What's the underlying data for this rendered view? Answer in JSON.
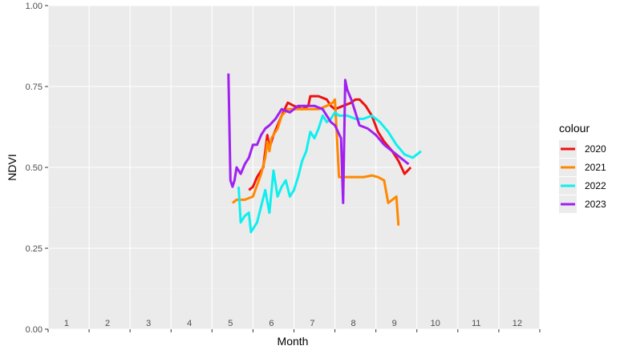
{
  "chart_data": {
    "type": "line",
    "xlabel": "Month",
    "ylabel": "NDVI",
    "ylim": [
      0,
      1
    ],
    "y_ticks": [
      "0.00",
      "0.25",
      "0.50",
      "0.75",
      "1.00"
    ],
    "x_month_labels": [
      "1",
      "2",
      "3",
      "4",
      "5",
      "6",
      "7",
      "8",
      "9",
      "10",
      "11",
      "12"
    ],
    "grid": true,
    "legend": {
      "title": "colour",
      "placement": "right"
    },
    "series": [
      {
        "name": "2020",
        "color": "#ee1111",
        "points": [
          [
            5.5,
            0.43
          ],
          [
            5.6,
            0.44
          ],
          [
            5.7,
            0.47
          ],
          [
            5.85,
            0.5
          ],
          [
            5.95,
            0.6
          ],
          [
            6.0,
            0.56
          ],
          [
            6.1,
            0.6
          ],
          [
            6.2,
            0.63
          ],
          [
            6.3,
            0.66
          ],
          [
            6.45,
            0.7
          ],
          [
            6.6,
            0.69
          ],
          [
            6.8,
            0.68
          ],
          [
            6.95,
            0.69
          ],
          [
            7.0,
            0.72
          ],
          [
            7.2,
            0.72
          ],
          [
            7.4,
            0.71
          ],
          [
            7.5,
            0.69
          ],
          [
            7.6,
            0.68
          ],
          [
            7.8,
            0.69
          ],
          [
            8.0,
            0.7
          ],
          [
            8.1,
            0.71
          ],
          [
            8.2,
            0.71
          ],
          [
            8.35,
            0.69
          ],
          [
            8.5,
            0.66
          ],
          [
            8.65,
            0.61
          ],
          [
            8.8,
            0.58
          ],
          [
            9.0,
            0.55
          ],
          [
            9.15,
            0.52
          ],
          [
            9.3,
            0.48
          ],
          [
            9.45,
            0.5
          ]
        ]
      },
      {
        "name": "2021",
        "color": "#ff8800",
        "points": [
          [
            5.1,
            0.39
          ],
          [
            5.2,
            0.4
          ],
          [
            5.4,
            0.4
          ],
          [
            5.6,
            0.41
          ],
          [
            5.8,
            0.48
          ],
          [
            5.9,
            0.53
          ],
          [
            5.95,
            0.58
          ],
          [
            6.0,
            0.55
          ],
          [
            6.05,
            0.59
          ],
          [
            6.1,
            0.6
          ],
          [
            6.2,
            0.62
          ],
          [
            6.3,
            0.66
          ],
          [
            6.45,
            0.68
          ],
          [
            6.6,
            0.68
          ],
          [
            6.8,
            0.68
          ],
          [
            7.0,
            0.68
          ],
          [
            7.2,
            0.68
          ],
          [
            7.4,
            0.69
          ],
          [
            7.55,
            0.7
          ],
          [
            7.6,
            0.71
          ],
          [
            7.7,
            0.47
          ],
          [
            7.9,
            0.47
          ],
          [
            8.1,
            0.47
          ],
          [
            8.3,
            0.47
          ],
          [
            8.5,
            0.475
          ],
          [
            8.65,
            0.47
          ],
          [
            8.8,
            0.46
          ],
          [
            8.9,
            0.39
          ],
          [
            9.0,
            0.4
          ],
          [
            9.1,
            0.41
          ],
          [
            9.15,
            0.32
          ]
        ]
      },
      {
        "name": "2022",
        "color": "#11eeee",
        "points": [
          [
            5.25,
            0.44
          ],
          [
            5.3,
            0.33
          ],
          [
            5.4,
            0.35
          ],
          [
            5.5,
            0.36
          ],
          [
            5.55,
            0.3
          ],
          [
            5.7,
            0.33
          ],
          [
            5.8,
            0.38
          ],
          [
            5.9,
            0.43
          ],
          [
            6.0,
            0.36
          ],
          [
            6.1,
            0.49
          ],
          [
            6.2,
            0.41
          ],
          [
            6.3,
            0.44
          ],
          [
            6.4,
            0.46
          ],
          [
            6.5,
            0.41
          ],
          [
            6.6,
            0.43
          ],
          [
            6.7,
            0.47
          ],
          [
            6.8,
            0.52
          ],
          [
            6.9,
            0.55
          ],
          [
            7.0,
            0.61
          ],
          [
            7.1,
            0.59
          ],
          [
            7.2,
            0.62
          ],
          [
            7.3,
            0.66
          ],
          [
            7.4,
            0.64
          ],
          [
            7.5,
            0.65
          ],
          [
            7.6,
            0.67
          ],
          [
            7.7,
            0.66
          ],
          [
            7.9,
            0.66
          ],
          [
            8.1,
            0.65
          ],
          [
            8.3,
            0.65
          ],
          [
            8.5,
            0.66
          ],
          [
            8.7,
            0.64
          ],
          [
            8.9,
            0.61
          ],
          [
            9.1,
            0.57
          ],
          [
            9.3,
            0.54
          ],
          [
            9.5,
            0.53
          ],
          [
            9.7,
            0.55
          ]
        ]
      },
      {
        "name": "2023",
        "color": "#a020f0",
        "points": [
          [
            5.0,
            0.79
          ],
          [
            5.05,
            0.46
          ],
          [
            5.1,
            0.44
          ],
          [
            5.15,
            0.46
          ],
          [
            5.2,
            0.5
          ],
          [
            5.3,
            0.48
          ],
          [
            5.4,
            0.51
          ],
          [
            5.5,
            0.53
          ],
          [
            5.6,
            0.57
          ],
          [
            5.7,
            0.57
          ],
          [
            5.8,
            0.6
          ],
          [
            5.9,
            0.62
          ],
          [
            6.0,
            0.63
          ],
          [
            6.15,
            0.65
          ],
          [
            6.3,
            0.68
          ],
          [
            6.5,
            0.67
          ],
          [
            6.7,
            0.69
          ],
          [
            6.9,
            0.69
          ],
          [
            7.1,
            0.69
          ],
          [
            7.3,
            0.68
          ],
          [
            7.4,
            0.66
          ],
          [
            7.5,
            0.64
          ],
          [
            7.6,
            0.63
          ],
          [
            7.75,
            0.59
          ],
          [
            7.8,
            0.39
          ],
          [
            7.85,
            0.77
          ],
          [
            7.9,
            0.74
          ],
          [
            8.0,
            0.71
          ],
          [
            8.1,
            0.67
          ],
          [
            8.2,
            0.63
          ],
          [
            8.4,
            0.62
          ],
          [
            8.6,
            0.6
          ],
          [
            8.8,
            0.57
          ],
          [
            9.0,
            0.55
          ],
          [
            9.2,
            0.53
          ],
          [
            9.4,
            0.51
          ]
        ]
      }
    ]
  }
}
